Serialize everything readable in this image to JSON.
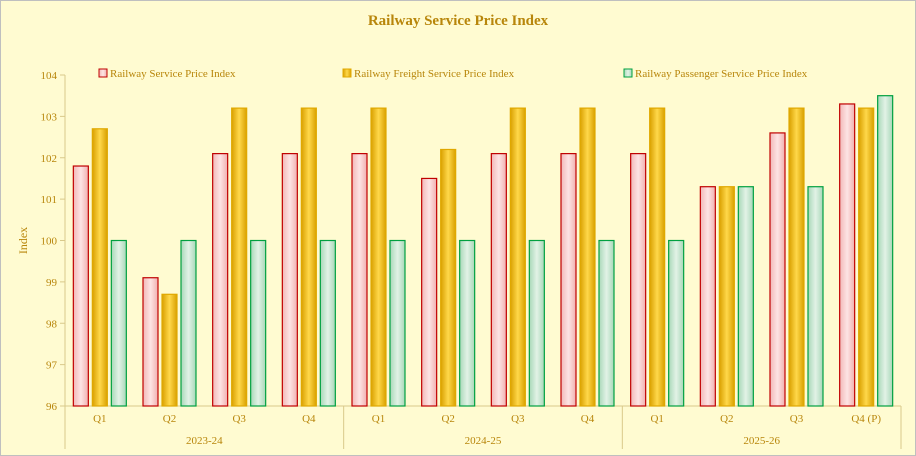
{
  "chart_data": {
    "type": "bar",
    "title": "Railway Service Price Index",
    "ylabel": "Index",
    "ylim": [
      96,
      104
    ],
    "ytick_step": 1,
    "grid": false,
    "legend_position": "top",
    "categories": [
      "Q1",
      "Q2",
      "Q3",
      "Q4",
      "Q1",
      "Q2",
      "Q3",
      "Q4",
      "Q1",
      "Q2",
      "Q3",
      "Q4 (P)"
    ],
    "groups": [
      {
        "label": "2023-24",
        "count": 4
      },
      {
        "label": "2024-25",
        "count": 4
      },
      {
        "label": "2025-26",
        "count": 4
      }
    ],
    "series": [
      {
        "name": "Railway Service Price Index",
        "color": "#c00000",
        "values": [
          101.8,
          99.1,
          102.1,
          102.1,
          102.1,
          101.5,
          102.1,
          102.1,
          102.1,
          101.3,
          102.6,
          103.3
        ]
      },
      {
        "name": "Railway Freight Service Price Index",
        "color": "#e0a800",
        "values": [
          102.7,
          98.7,
          103.2,
          103.2,
          103.2,
          102.2,
          103.2,
          103.2,
          103.2,
          101.3,
          103.2,
          103.2
        ]
      },
      {
        "name": "Railway Passenger Service Price Index",
        "color": "#00a040",
        "values": [
          100,
          100,
          100,
          100,
          100,
          100,
          100,
          100,
          100,
          101.3,
          101.3,
          103.5
        ]
      }
    ]
  }
}
